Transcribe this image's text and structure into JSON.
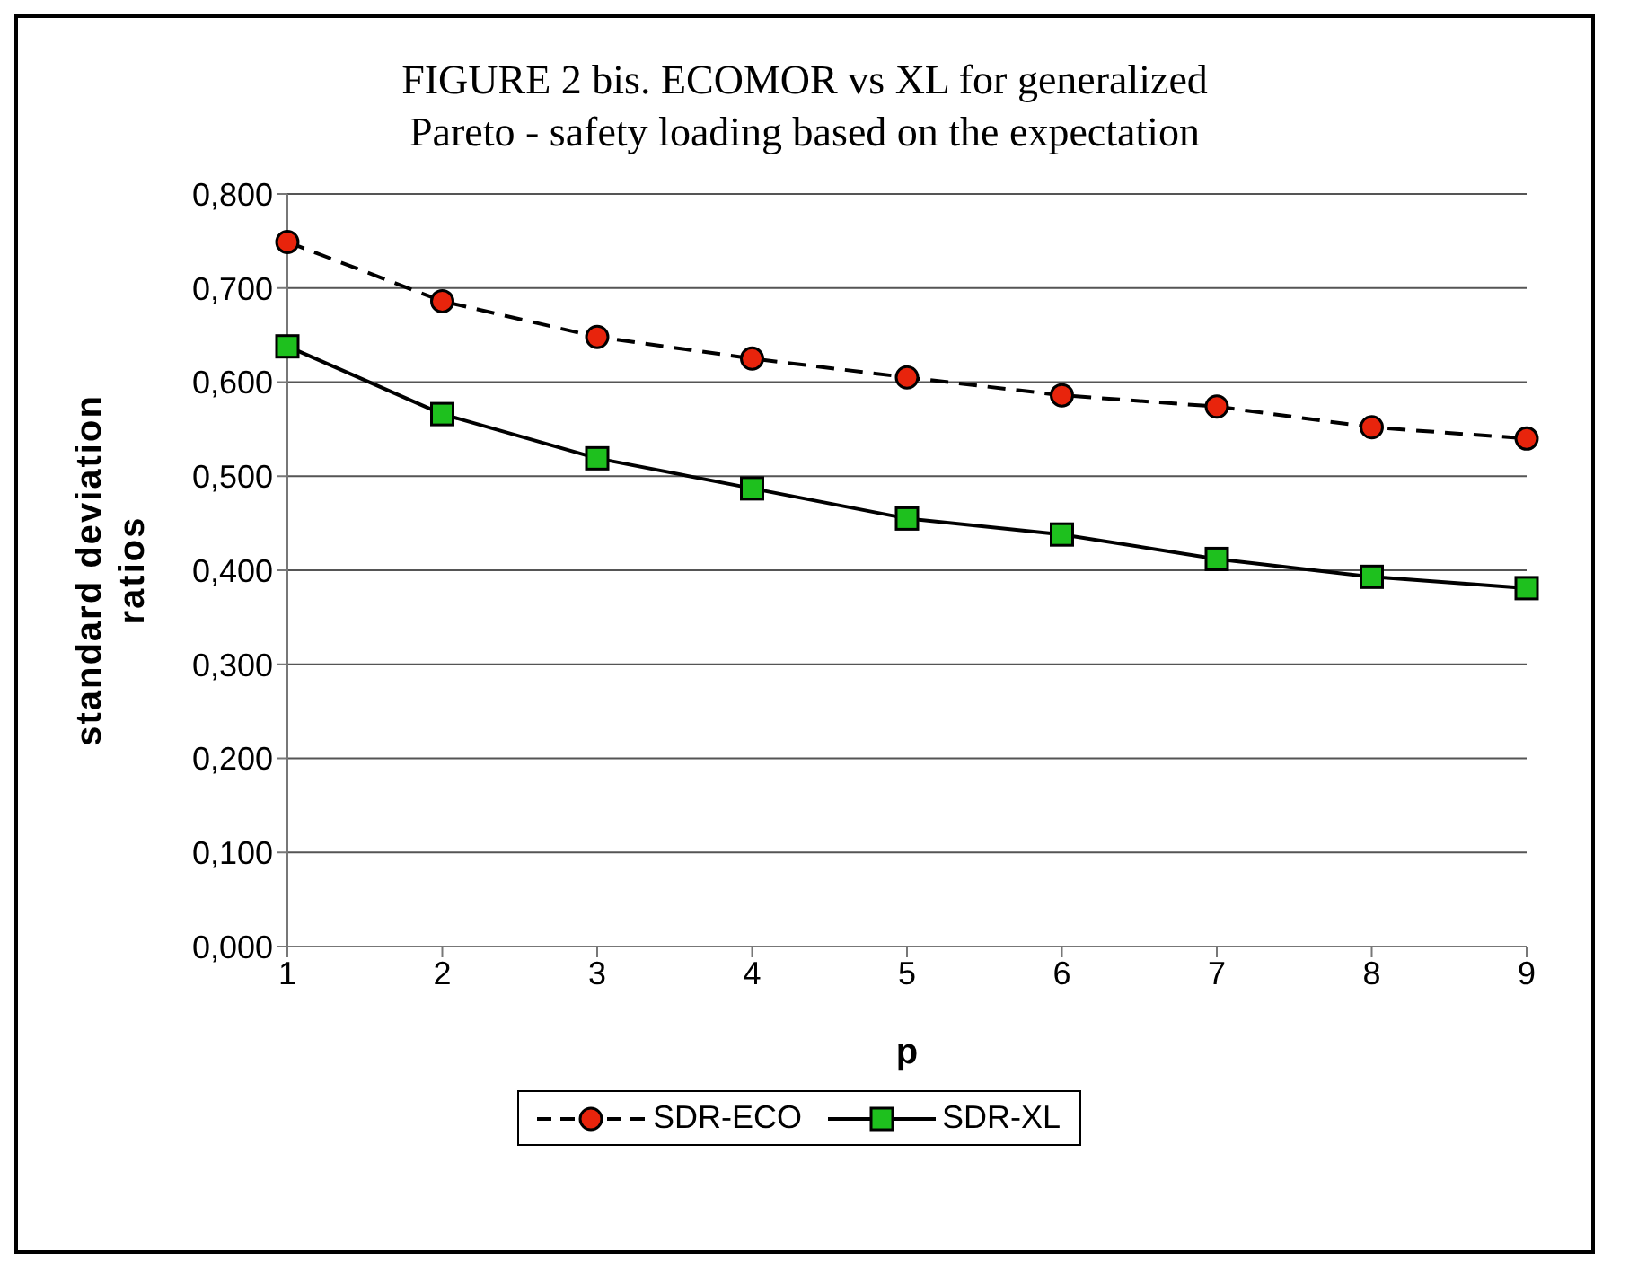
{
  "chart_data": {
    "type": "line",
    "title": "FIGURE 2 bis. ECOMOR vs XL for generalized Pareto - safety loading based on the expectation",
    "xlabel": "p",
    "ylabel": "standard deviation ratios",
    "categories": [
      "1",
      "2",
      "3",
      "4",
      "5",
      "6",
      "7",
      "8",
      "9"
    ],
    "series": [
      {
        "name": "SDR-ECO",
        "color": "#e8240c",
        "values": [
          0.749,
          0.686,
          0.648,
          0.625,
          0.605,
          0.586,
          0.574,
          0.552,
          0.54
        ],
        "marker": "circle",
        "line_style": "dashed"
      },
      {
        "name": "SDR-XL",
        "color": "#1ec01e",
        "values": [
          0.638,
          0.566,
          0.519,
          0.487,
          0.455,
          0.438,
          0.412,
          0.393,
          0.381
        ],
        "marker": "square",
        "line_style": "solid"
      }
    ],
    "ylim": [
      0,
      0.8
    ],
    "yticks": [
      {
        "value": 0,
        "label": "0,000"
      },
      {
        "value": 0.1,
        "label": "0,100"
      },
      {
        "value": 0.2,
        "label": "0,200"
      },
      {
        "value": 0.3,
        "label": "0,300"
      },
      {
        "value": 0.4,
        "label": "0,400"
      },
      {
        "value": 0.5,
        "label": "0,500"
      },
      {
        "value": 0.6,
        "label": "0,600"
      },
      {
        "value": 0.7,
        "label": "0,700"
      },
      {
        "value": 0.8,
        "label": "0,800"
      }
    ],
    "grid": "y",
    "legend": "bottom"
  }
}
